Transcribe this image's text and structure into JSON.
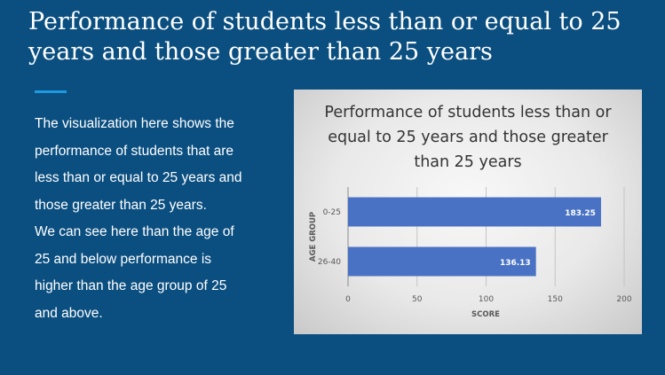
{
  "slide": {
    "title": "Performance of students less than or equal to 25 years and those greater than 25 years",
    "paragraph_1": "The visualization here shows the performance of students that are less than or equal to 25 years and those greater than 25 years.",
    "paragraph_2": "We can see here than the age of 25 and below performance is higher than the age group of 25 and above."
  },
  "colors": {
    "background": "#0b4f80",
    "accent": "#1f9ae0",
    "bar": "#4a72c4"
  },
  "chart_data": {
    "type": "bar",
    "orientation": "horizontal",
    "title_lines": [
      "Performance of students less than or",
      "equal to 25 years and those greater",
      "than 25 years"
    ],
    "categories": [
      "0-25",
      "26-40"
    ],
    "values": [
      183.25,
      136.13
    ],
    "value_labels": [
      "183.25",
      "136.13"
    ],
    "xlabel": "SCORE",
    "ylabel": "AGE GROUP",
    "xlim": [
      0,
      200
    ],
    "xticks": [
      0,
      50,
      100,
      150,
      200
    ],
    "xtick_labels": [
      "0",
      "50",
      "100",
      "150",
      "200"
    ],
    "grid": true
  }
}
